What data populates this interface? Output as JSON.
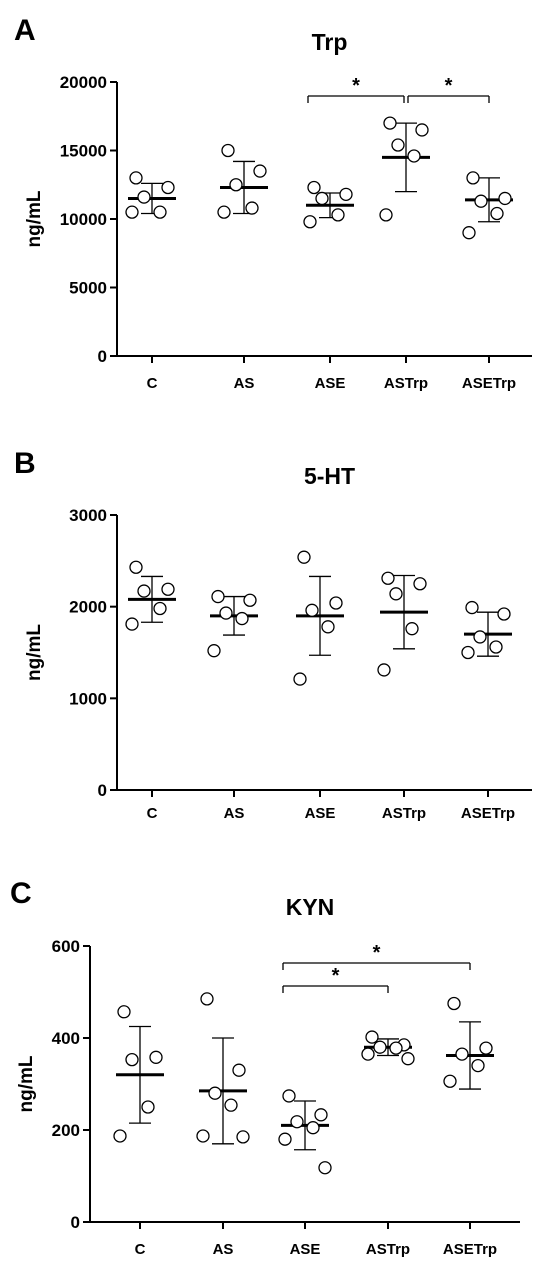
{
  "chart_data": [
    {
      "type": "scatter",
      "panel_label": "A",
      "title": "Trp",
      "ylabel": "ng/mL",
      "xlabel": "",
      "ylim": [
        0,
        20000
      ],
      "yticks": [
        0,
        5000,
        10000,
        15000,
        20000
      ],
      "categories": [
        "C",
        "AS",
        "ASE",
        "ASTrp",
        "ASETrp"
      ],
      "points": [
        [
          13000,
          12300,
          11600,
          10500,
          10500
        ],
        [
          15000,
          13500,
          12500,
          10800,
          10500
        ],
        [
          12300,
          11800,
          11500,
          10300,
          9800
        ],
        [
          17000,
          16500,
          15400,
          14600,
          10300
        ],
        [
          13000,
          11500,
          11300,
          10400,
          9000
        ]
      ],
      "mean": [
        11500,
        12300,
        11000,
        14500,
        11400
      ],
      "sd": [
        1100,
        1900,
        900,
        2500,
        1600
      ],
      "significance": [
        {
          "from": 2,
          "to": 3,
          "label": "*"
        },
        {
          "from": 3,
          "to": 4,
          "label": "*"
        }
      ]
    },
    {
      "type": "scatter",
      "panel_label": "B",
      "title": "5-HT",
      "ylabel": "ng/mL",
      "xlabel": "",
      "ylim": [
        0,
        3000
      ],
      "yticks": [
        0,
        1000,
        2000,
        3000
      ],
      "categories": [
        "C",
        "AS",
        "ASE",
        "ASTrp",
        "ASETrp"
      ],
      "points": [
        [
          2430,
          2190,
          2170,
          1980,
          1810
        ],
        [
          2110,
          2070,
          1930,
          1870,
          1520
        ],
        [
          2540,
          2040,
          1960,
          1780,
          1210
        ],
        [
          2310,
          2250,
          2140,
          1760,
          1310
        ],
        [
          1990,
          1920,
          1670,
          1560,
          1500
        ]
      ],
      "mean": [
        2080,
        1900,
        1900,
        1940,
        1700
      ],
      "sd": [
        250,
        210,
        430,
        400,
        240
      ],
      "significance": []
    },
    {
      "type": "scatter",
      "panel_label": "C",
      "title": "KYN",
      "ylabel": "ng/mL",
      "xlabel": "",
      "ylim": [
        0,
        600
      ],
      "yticks": [
        0,
        200,
        400,
        600
      ],
      "categories": [
        "C",
        "AS",
        "ASE",
        "ASTrp",
        "ASETrp"
      ],
      "points": [
        [
          457,
          358,
          353,
          250,
          187
        ],
        [
          485,
          330,
          280,
          254,
          187,
          185
        ],
        [
          274,
          233,
          218,
          205,
          180,
          118
        ],
        [
          402,
          385,
          380,
          378,
          365,
          355
        ],
        [
          475,
          378,
          365,
          340,
          306
        ]
      ],
      "mean": [
        320,
        285,
        210,
        380,
        362
      ],
      "sd": [
        105,
        115,
        53,
        18,
        73
      ],
      "significance": [
        {
          "from": 2,
          "to": 3,
          "label": "*"
        },
        {
          "from": 2,
          "to": 4,
          "label": "*"
        }
      ]
    }
  ]
}
